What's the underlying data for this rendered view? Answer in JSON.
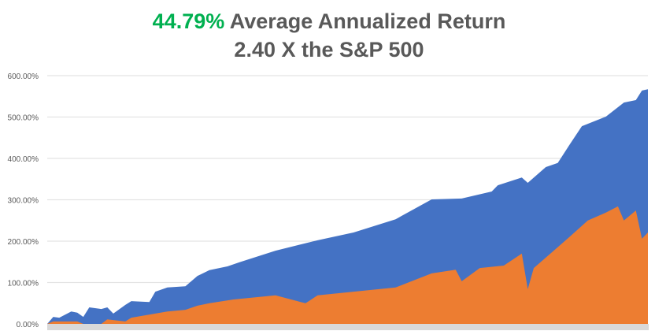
{
  "title": {
    "highlight": "44.79%",
    "line1_rest": " Average Annualized Return",
    "line2": "2.40 X the S&P 500"
  },
  "colors": {
    "highlight": "#00b050",
    "series1": "#4472c4",
    "series2": "#ed7d31",
    "grid": "#e3e3e3",
    "axis": "#d9d9d9"
  },
  "chart_data": {
    "type": "area",
    "title": "44.79% Average Annualized Return 2.40 X the S&P 500",
    "xlabel": "",
    "ylabel": "",
    "ylim": [
      0,
      600
    ],
    "xlim": [
      0,
      100
    ],
    "grid": true,
    "legend": "none",
    "yticks": [
      "0.00%",
      "100.00%",
      "200.00%",
      "300.00%",
      "400.00%",
      "500.00%",
      "600.00%"
    ],
    "series": [
      {
        "color": "#4472c4",
        "x": [
          0,
          1,
          2,
          4,
          5,
          6,
          7,
          9,
          10,
          11,
          13,
          14,
          17,
          18,
          20,
          23,
          25,
          27,
          30,
          32,
          38,
          45,
          51,
          58,
          64,
          69,
          74,
          75,
          79,
          80,
          83,
          85,
          87,
          89,
          93,
          96,
          98,
          99,
          100
        ],
        "values": [
          0,
          17,
          15,
          30,
          27,
          17,
          40,
          36,
          40,
          25,
          46,
          55,
          53,
          78,
          88,
          91,
          116,
          130,
          139,
          149,
          177,
          202,
          221,
          253,
          301,
          303,
          320,
          335,
          354,
          341,
          379,
          389,
          434,
          478,
          501,
          535,
          541,
          564,
          567
        ]
      },
      {
        "color": "#ed7d31",
        "x": [
          0,
          1,
          5,
          6,
          9,
          10,
          13,
          14,
          18,
          20,
          23,
          25,
          27,
          31,
          38,
          43,
          45,
          51,
          58,
          64,
          68,
          69,
          72,
          76,
          79,
          80,
          81,
          84,
          87,
          90,
          93,
          95,
          96,
          98,
          99,
          100
        ],
        "values": [
          0,
          6,
          6,
          0,
          0,
          11,
          6,
          15,
          25,
          30,
          34,
          44,
          50,
          59,
          69,
          50,
          69,
          78,
          88,
          122,
          131,
          103,
          135,
          141,
          170,
          84,
          135,
          173,
          211,
          250,
          269,
          284,
          250,
          274,
          206,
          221
        ]
      }
    ]
  }
}
